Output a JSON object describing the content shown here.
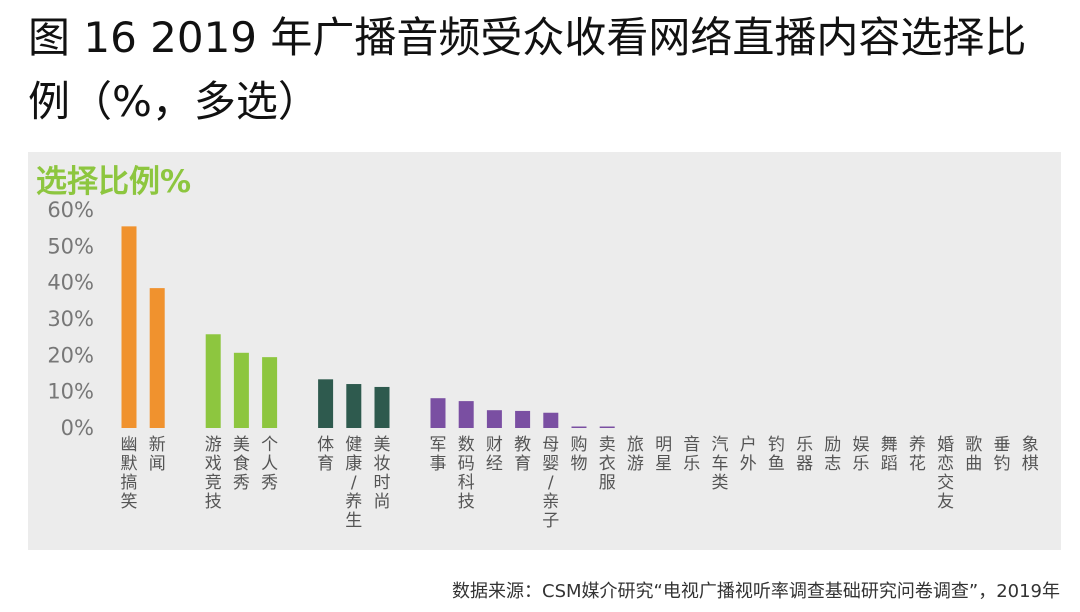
{
  "title": {
    "line1": "图 16 2019 年广播音频受众收看网络直播内容选择比",
    "line2": "例（%，多选）"
  },
  "source": "数据来源：CSM媒介研究“电视广播视听率调查基础研究问卷调查”，2019年",
  "chart_data": {
    "type": "bar",
    "title": "选择比例%",
    "ylim": [
      0,
      60
    ],
    "y_ticks": [
      "0%",
      "10%",
      "20%",
      "30%",
      "40%",
      "50%",
      "60%"
    ],
    "grid": false,
    "legend": "none",
    "categories": [
      "幽默搞笑",
      "新闻",
      "游戏竞技",
      "美食秀",
      "个人秀",
      "体育",
      "健康/养生",
      "美妆时尚",
      "军事",
      "数码科技",
      "财经",
      "教育",
      "母婴/亲子",
      "购物",
      "卖衣服",
      "旅游",
      "明星",
      "音乐",
      "汽车类",
      "户外",
      "钓鱼",
      "乐器",
      "励志",
      "娱乐",
      "舞蹈",
      "养花",
      "婚恋交友",
      "歌曲",
      "垂钓",
      "象棋"
    ],
    "values": [
      55.5,
      38.5,
      25.8,
      20.7,
      19.5,
      13.4,
      12.1,
      11.3,
      8.2,
      7.4,
      4.9,
      4.7,
      4.2,
      0.4,
      0.4,
      0,
      0,
      0,
      0,
      0,
      0,
      0,
      0,
      0,
      0,
      0,
      0,
      0,
      0,
      0
    ],
    "groups": [
      {
        "start": 0,
        "end": 1,
        "color": "#f0922e"
      },
      {
        "start": 2,
        "end": 4,
        "color": "#8dc63f"
      },
      {
        "start": 5,
        "end": 7,
        "color": "#2e5a4e"
      },
      {
        "start": 8,
        "end": 29,
        "color": "#7a4fa2"
      }
    ]
  }
}
